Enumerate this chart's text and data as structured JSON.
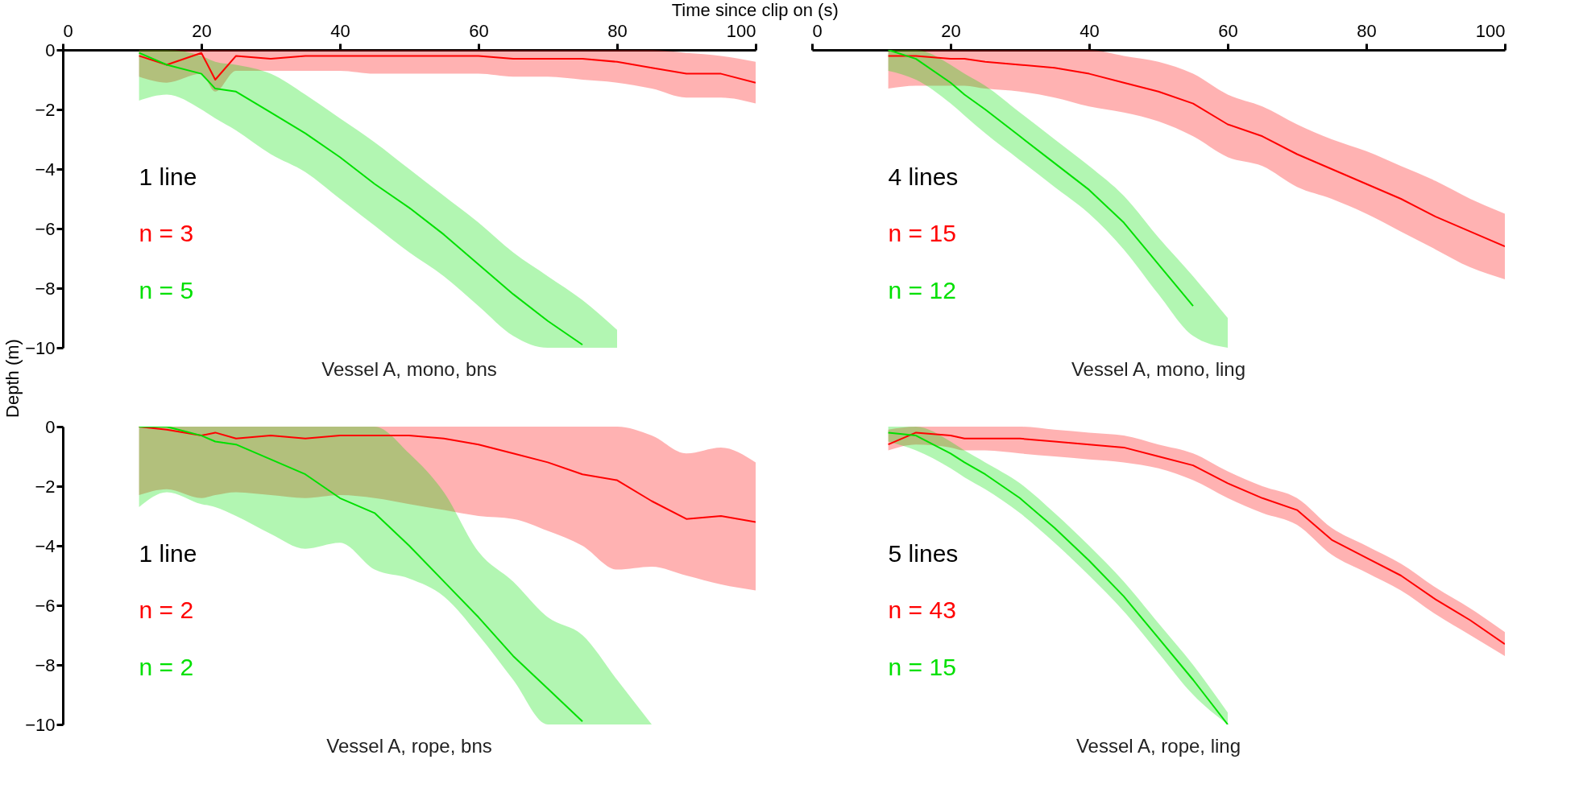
{
  "chart_data": [
    {
      "type": "line",
      "title": "Vessel A, mono, bns",
      "xlabel": "Time since clip on (s)",
      "ylabel": "Depth (m)",
      "x": [
        11,
        15,
        20,
        22,
        25,
        30,
        35,
        40,
        45,
        50,
        55,
        60,
        65,
        70,
        75,
        80,
        85,
        90,
        95,
        100
      ],
      "xlim": [
        0,
        100
      ],
      "xticks": [
        0,
        20,
        40,
        60,
        80,
        100
      ],
      "ylim": [
        -10,
        0
      ],
      "yticks": [
        0,
        -2,
        -4,
        -6,
        -8,
        -10
      ],
      "grid": false,
      "annotations": [
        "1 line",
        "n = 3",
        "n = 5"
      ],
      "series": [
        {
          "color": "#ff0000",
          "values": [
            -0.2,
            -0.5,
            -0.1,
            -1.0,
            -0.2,
            -0.3,
            -0.2,
            -0.2,
            -0.2,
            -0.2,
            -0.2,
            -0.2,
            -0.3,
            -0.3,
            -0.3,
            -0.4,
            -0.6,
            -0.8,
            -0.8,
            -1.1
          ],
          "upper": [
            0,
            0,
            0,
            0,
            0,
            0,
            0,
            0,
            0,
            0,
            0,
            0,
            0,
            0,
            0,
            0,
            0,
            -0.1,
            -0.2,
            -0.4
          ],
          "lower": [
            -0.9,
            -1.1,
            -0.8,
            -1.4,
            -0.7,
            -0.7,
            -0.7,
            -0.7,
            -0.8,
            -0.8,
            -0.8,
            -0.8,
            -0.9,
            -0.9,
            -1.0,
            -1.1,
            -1.3,
            -1.6,
            -1.6,
            -1.8
          ]
        },
        {
          "color": "#00e000",
          "values": [
            -0.1,
            -0.5,
            -0.8,
            -1.3,
            -1.4,
            -2.1,
            -2.8,
            -3.6,
            -4.5,
            -5.3,
            -6.2,
            -7.2,
            -8.2,
            -9.1,
            -9.9,
            null,
            null,
            null,
            null,
            null
          ],
          "upper": [
            0,
            0,
            -0.2,
            -0.4,
            -0.5,
            -0.8,
            -1.5,
            -2.3,
            -3.1,
            -4.0,
            -4.9,
            -5.8,
            -6.8,
            -7.6,
            -8.4,
            -9.4,
            null,
            null,
            null,
            null
          ],
          "lower": [
            -1.7,
            -1.5,
            -2.0,
            -2.3,
            -2.7,
            -3.5,
            -4.1,
            -5.0,
            -5.9,
            -6.8,
            -7.6,
            -8.6,
            -9.6,
            -10,
            -10,
            -10,
            null,
            null,
            null,
            null
          ]
        }
      ]
    },
    {
      "type": "line",
      "title": "Vessel A, mono, ling",
      "tick_labels": "x",
      "x": [
        11,
        15,
        20,
        22,
        25,
        30,
        35,
        40,
        45,
        50,
        55,
        60,
        65,
        70,
        75,
        80,
        85,
        90,
        95,
        100
      ],
      "xlim": [
        0,
        100
      ],
      "xticks": [
        0,
        20,
        40,
        60,
        80,
        100
      ],
      "ylim": [
        -10,
        0
      ],
      "grid": false,
      "annotations": [
        "4 lines",
        "n = 15",
        "n = 12"
      ],
      "series": [
        {
          "color": "#ff0000",
          "values": [
            -0.2,
            -0.2,
            -0.3,
            -0.3,
            -0.4,
            -0.5,
            -0.6,
            -0.8,
            -1.1,
            -1.4,
            -1.8,
            -2.5,
            -2.9,
            -3.5,
            -4.0,
            -4.5,
            -5.0,
            -5.6,
            -6.1,
            -6.6
          ],
          "upper": [
            0,
            0,
            0,
            0,
            0,
            0,
            0,
            0,
            -0.2,
            -0.4,
            -0.8,
            -1.5,
            -1.9,
            -2.5,
            -3.0,
            -3.4,
            -3.9,
            -4.4,
            -5.0,
            -5.5
          ],
          "lower": [
            -1.3,
            -1.2,
            -1.2,
            -1.2,
            -1.3,
            -1.4,
            -1.6,
            -1.9,
            -2.1,
            -2.4,
            -2.9,
            -3.6,
            -3.9,
            -4.6,
            -5.0,
            -5.5,
            -6.1,
            -6.7,
            -7.3,
            -7.7
          ]
        },
        {
          "color": "#00e000",
          "values": [
            0,
            -0.3,
            -1.1,
            -1.5,
            -2.0,
            -2.9,
            -3.8,
            -4.7,
            -5.8,
            -7.2,
            -8.6,
            null,
            null,
            null,
            null,
            null,
            null,
            null,
            null,
            null
          ],
          "upper": [
            0,
            0,
            -0.5,
            -0.8,
            -1.2,
            -2.1,
            -3.0,
            -3.9,
            -4.9,
            -6.3,
            -7.6,
            -9.0,
            null,
            null,
            null,
            null,
            null,
            null,
            null,
            null
          ],
          "lower": [
            -0.7,
            -1.0,
            -1.8,
            -2.2,
            -2.8,
            -3.7,
            -4.6,
            -5.5,
            -6.7,
            -8.2,
            -9.6,
            -10,
            null,
            null,
            null,
            null,
            null,
            null,
            null,
            null
          ]
        }
      ]
    },
    {
      "type": "line",
      "title": "Vessel A, rope, bns",
      "tick_labels": "y",
      "x": [
        11,
        15,
        20,
        22,
        25,
        30,
        35,
        40,
        45,
        50,
        55,
        60,
        65,
        70,
        75,
        80,
        85,
        90,
        95,
        100
      ],
      "xlim": [
        0,
        100
      ],
      "ylim": [
        -10,
        0
      ],
      "yticks": [
        0,
        -2,
        -4,
        -6,
        -8,
        -10
      ],
      "grid": false,
      "annotations": [
        "1 line",
        "n = 2",
        "n = 2"
      ],
      "series": [
        {
          "color": "#ff0000",
          "values": [
            0,
            -0.1,
            -0.3,
            -0.2,
            -0.4,
            -0.3,
            -0.4,
            -0.3,
            -0.3,
            -0.3,
            -0.4,
            -0.6,
            -0.9,
            -1.2,
            -1.6,
            -1.8,
            -2.5,
            -3.1,
            -3.0,
            -3.2
          ],
          "upper": [
            0,
            0,
            0,
            0,
            0,
            0,
            0,
            0,
            0,
            0,
            0,
            0,
            0,
            0,
            0,
            0,
            -0.3,
            -0.9,
            -0.7,
            -1.2
          ],
          "lower": [
            -2.3,
            -2.1,
            -2.4,
            -2.3,
            -2.2,
            -2.3,
            -2.4,
            -2.3,
            -2.4,
            -2.6,
            -2.8,
            -3.0,
            -3.1,
            -3.5,
            -4.0,
            -4.8,
            -4.7,
            -5.0,
            -5.3,
            -5.5
          ]
        },
        {
          "color": "#00e000",
          "values": [
            0,
            0,
            -0.3,
            -0.5,
            -0.6,
            -1.1,
            -1.6,
            -2.4,
            -2.9,
            -4.0,
            -5.2,
            -6.4,
            -7.7,
            -8.8,
            -9.9,
            null,
            null,
            null,
            null,
            null
          ],
          "upper": [
            0,
            0,
            0,
            0,
            0,
            0,
            0,
            0,
            0,
            -0.9,
            -2.2,
            -4.2,
            -5.2,
            -6.4,
            -7.0,
            -8.5,
            -10,
            null,
            null,
            null
          ],
          "lower": [
            -2.7,
            -2.2,
            -2.6,
            -2.7,
            -3.0,
            -3.6,
            -4.1,
            -3.9,
            -4.8,
            -5.1,
            -5.7,
            -7.0,
            -8.5,
            -10,
            -10,
            -10,
            -10,
            null,
            null,
            null
          ]
        }
      ]
    },
    {
      "type": "line",
      "title": "Vessel A, rope, ling",
      "tick_labels": false,
      "x": [
        11,
        15,
        20,
        22,
        25,
        30,
        35,
        40,
        45,
        50,
        55,
        60,
        65,
        70,
        75,
        80,
        85,
        90,
        95,
        100
      ],
      "xlim": [
        0,
        100
      ],
      "ylim": [
        -10,
        0
      ],
      "grid": false,
      "annotations": [
        "5 lines",
        "n = 43",
        "n = 15"
      ],
      "series": [
        {
          "color": "#ff0000",
          "values": [
            -0.6,
            -0.2,
            -0.3,
            -0.4,
            -0.4,
            -0.4,
            -0.5,
            -0.6,
            -0.7,
            -1.0,
            -1.3,
            -1.9,
            -2.4,
            -2.8,
            -3.8,
            -4.4,
            -5.0,
            -5.8,
            -6.5,
            -7.3
          ],
          "upper": [
            -0.1,
            0,
            0,
            0,
            0,
            0,
            -0.1,
            -0.2,
            -0.3,
            -0.6,
            -0.9,
            -1.5,
            -2.0,
            -2.4,
            -3.4,
            -4.0,
            -4.6,
            -5.4,
            -6.1,
            -6.9
          ],
          "lower": [
            -0.8,
            -0.6,
            -0.7,
            -0.8,
            -0.8,
            -0.9,
            -1.0,
            -1.1,
            -1.2,
            -1.4,
            -1.8,
            -2.4,
            -2.9,
            -3.3,
            -4.3,
            -4.9,
            -5.5,
            -6.3,
            -7.0,
            -7.7
          ]
        },
        {
          "color": "#00e000",
          "values": [
            -0.2,
            -0.3,
            -0.9,
            -1.2,
            -1.6,
            -2.4,
            -3.4,
            -4.5,
            -5.7,
            -7.1,
            -8.5,
            -10,
            null,
            null,
            null,
            null,
            null,
            null,
            null,
            null
          ],
          "upper": [
            0,
            0,
            -0.5,
            -0.8,
            -1.2,
            -1.9,
            -2.9,
            -4.0,
            -5.2,
            -6.6,
            -8.0,
            -9.6,
            null,
            null,
            null,
            null,
            null,
            null,
            null,
            null
          ],
          "lower": [
            -0.5,
            -0.8,
            -1.4,
            -1.7,
            -2.1,
            -2.9,
            -3.9,
            -5.0,
            -6.2,
            -7.6,
            -9.0,
            -10,
            null,
            null,
            null,
            null,
            null,
            null,
            null,
            null
          ]
        }
      ]
    }
  ]
}
